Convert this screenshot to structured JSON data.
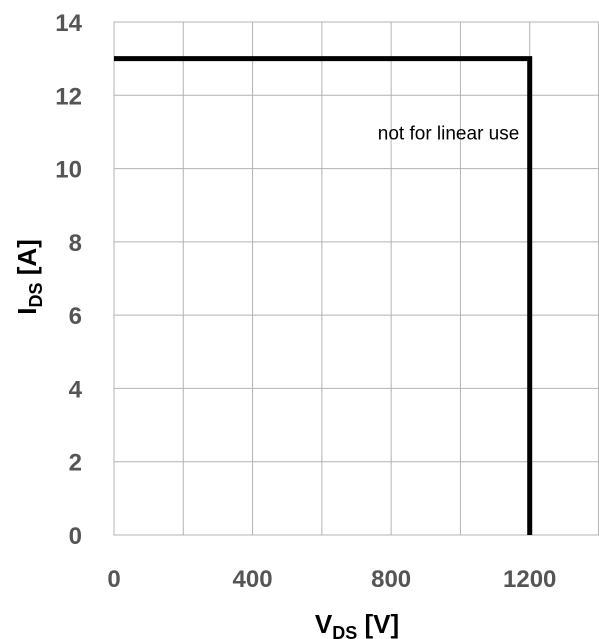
{
  "chart_data": {
    "type": "line",
    "xlabel": {
      "main": "V",
      "sub": "DS",
      "unit": " [V]"
    },
    "ylabel": {
      "main": "I",
      "sub": "DS",
      "unit": " [A]"
    },
    "xlim": [
      0,
      1400
    ],
    "ylim": [
      0,
      14
    ],
    "xticks": [
      0,
      400,
      800,
      1200
    ],
    "yticks": [
      0,
      2,
      4,
      6,
      8,
      10,
      12,
      14
    ],
    "xtick_labels": [
      "0",
      "400",
      "800",
      "1200"
    ],
    "ytick_labels": [
      "0",
      "2",
      "4",
      "6",
      "8",
      "10",
      "12",
      "14"
    ],
    "grid": true,
    "series": [
      {
        "x": [
          0,
          1200,
          1200
        ],
        "y": [
          13,
          13,
          0
        ],
        "color": "#000000"
      }
    ],
    "annotations": [
      {
        "text": "not for linear use",
        "x": 1170,
        "y": 10.8
      }
    ]
  }
}
